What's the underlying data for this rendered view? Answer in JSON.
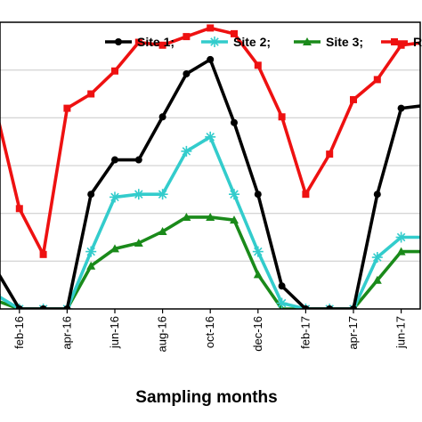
{
  "chart_data": {
    "type": "line",
    "xlabel": "Sampling months",
    "ylabel": "",
    "ylim": [
      0,
      100
    ],
    "x_tick_labels": [
      "feb-16",
      "apr-16",
      "jun-16",
      "aug-16",
      "oct-16",
      "dec-16",
      "feb-17",
      "apr-17",
      "jun-17"
    ],
    "x": [
      "jan-16",
      "feb-16",
      "mar-16",
      "apr-16",
      "may-16",
      "jun-16",
      "jul-16",
      "aug-16",
      "sep-16",
      "oct-16",
      "nov-16",
      "dec-16",
      "jan-17",
      "feb-17",
      "mar-17",
      "apr-17",
      "may-17",
      "jun-17",
      "jul-17"
    ],
    "grid": "horizontal",
    "legend_position": "top",
    "series": [
      {
        "name": "Site 1;",
        "color": "#000000",
        "marker": "circle",
        "values": [
          14,
          0,
          0,
          0,
          40,
          52,
          52,
          67,
          82,
          87,
          65,
          40,
          8,
          0,
          0,
          0,
          40,
          70,
          71
        ]
      },
      {
        "name": "Site 2;",
        "color": "#33cccc",
        "marker": "cross",
        "values": [
          5,
          0,
          0,
          0,
          20,
          39,
          40,
          40,
          55,
          60,
          40,
          20,
          2,
          0,
          0,
          0,
          18,
          25,
          25
        ]
      },
      {
        "name": "Site 3;",
        "color": "#1a8a1a",
        "marker": "triangle",
        "values": [
          3,
          0,
          0,
          0,
          15,
          21,
          23,
          27,
          32,
          32,
          31,
          12,
          0,
          0,
          0,
          0,
          10,
          20,
          20
        ]
      },
      {
        "name": "R",
        "color": "#ee1111",
        "marker": "square",
        "values": [
          70,
          35,
          19,
          70,
          75,
          83,
          93,
          92,
          95,
          98,
          96,
          85,
          67,
          40,
          54,
          73,
          80,
          92,
          93
        ]
      }
    ]
  }
}
